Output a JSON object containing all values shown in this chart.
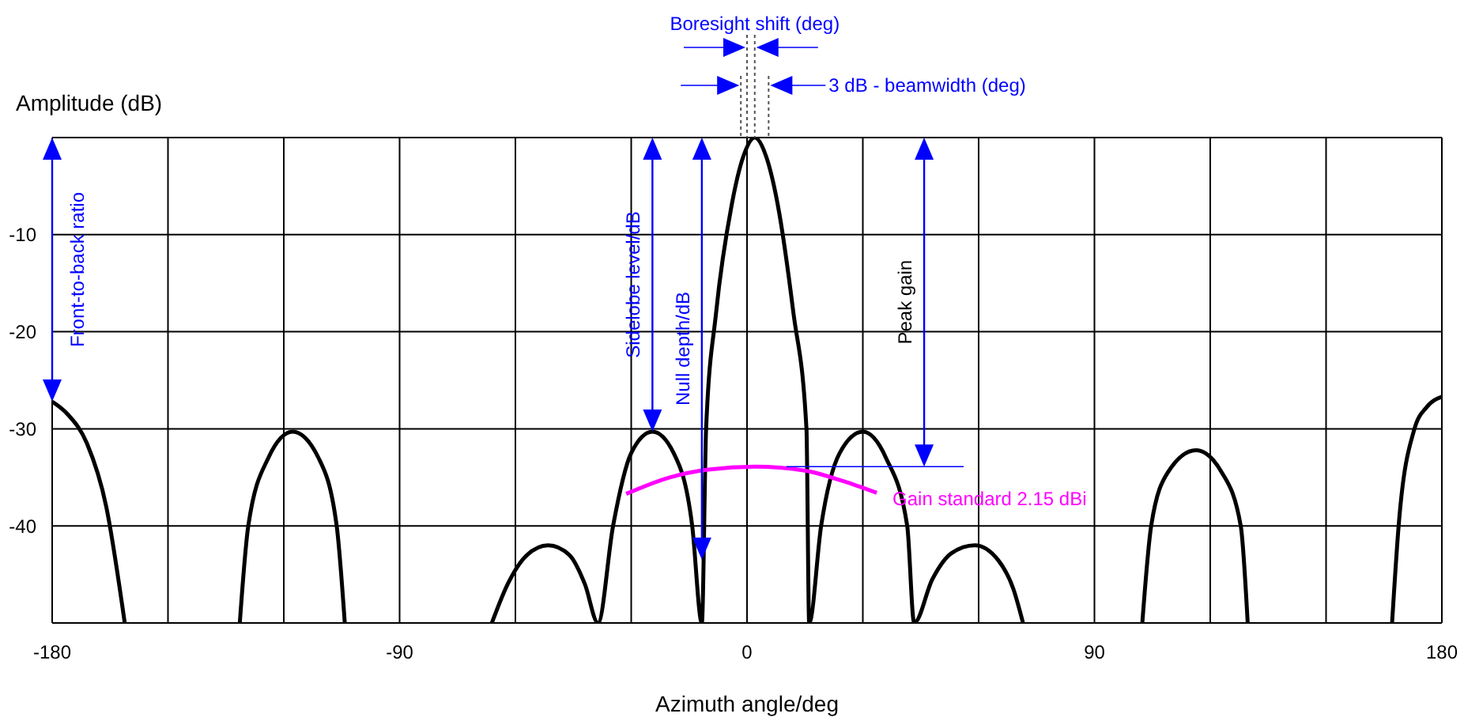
{
  "chart_data": {
    "type": "line",
    "xlabel": "Azimuth angle/deg",
    "ylabel": "Amplitude (dB)",
    "xlim": [
      -180,
      180
    ],
    "xticks": [
      -180,
      {
        "value": -150,
        "label": null
      },
      {
        "value": -120,
        "label": null
      },
      -90,
      {
        "value": -60,
        "label": null
      },
      {
        "value": -30,
        "label": null
      },
      0,
      {
        "value": 30,
        "label": null
      },
      {
        "value": 60,
        "label": null
      },
      90,
      {
        "value": 120,
        "label": null
      },
      {
        "value": 150,
        "label": null
      },
      180
    ],
    "ylim": [
      -50,
      0
    ],
    "yticks": [
      {
        "value": 0,
        "label": null
      },
      -10,
      -20,
      -30,
      -40,
      {
        "value": -50,
        "label": null
      }
    ],
    "grid": true,
    "marker": "none",
    "line_style": "solid",
    "series": [
      {
        "color": "#000000",
        "x": [
          -180,
          -176,
          -171,
          -166,
          -161.2,
          -145,
          -131.4,
          -129.2,
          -124,
          -117.7,
          -111,
          -106.3,
          -104.2,
          -90,
          -66.1,
          -62,
          -57,
          -51.5,
          -46,
          -42,
          -38.6,
          -34.7,
          -30,
          -24.5,
          -19,
          -14.2,
          -11.7,
          -10.6,
          -8,
          -4,
          -1,
          2,
          5,
          8,
          12,
          15.4,
          16.1,
          19.2,
          24,
          30,
          36,
          41.5,
          43.3,
          48,
          53,
          59,
          65,
          69,
          71.5,
          90,
          102.4,
          104.7,
          109,
          116.3,
          123,
          127.9,
          129.7,
          150,
          167.1,
          168.8,
          172.9,
          176,
          180
        ],
        "values": [
          -27.2,
          -28.5,
          -31.5,
          -38,
          -50,
          null,
          -50,
          -40,
          -33,
          -30.3,
          -33,
          -40,
          -50,
          null,
          -50,
          -46,
          -43,
          -42,
          -43,
          -46,
          -50,
          -40,
          -32.5,
          -30.3,
          -32.5,
          -40,
          -50,
          -30,
          -18,
          -7,
          -2,
          0,
          -2,
          -7,
          -18,
          -30,
          -50,
          -40,
          -32.5,
          -30.3,
          -33,
          -40,
          -50,
          -45.5,
          -42.8,
          -42,
          -43.5,
          -46.5,
          -50,
          null,
          -50,
          -40,
          -34.5,
          -32.2,
          -34.5,
          -40,
          -50,
          null,
          -50,
          -40,
          -30,
          -27.8,
          -26.7
        ]
      },
      {
        "name": "Gain standard 2.15 dBi",
        "color": "#ff00ff",
        "x": [
          -31.3,
          -20,
          -10,
          2,
          15,
          25,
          33.6
        ],
        "values": [
          -36.7,
          -35,
          -34.2,
          -33.9,
          -34.3,
          -35.4,
          -36.6
        ]
      }
    ],
    "annotations": [
      "Boresight shift (deg)",
      "3 dB - beamwidth (deg)",
      "Front-to-back ratio",
      "Sidelobe level/dB",
      "Null depth/dB",
      "Peak gain"
    ]
  }
}
